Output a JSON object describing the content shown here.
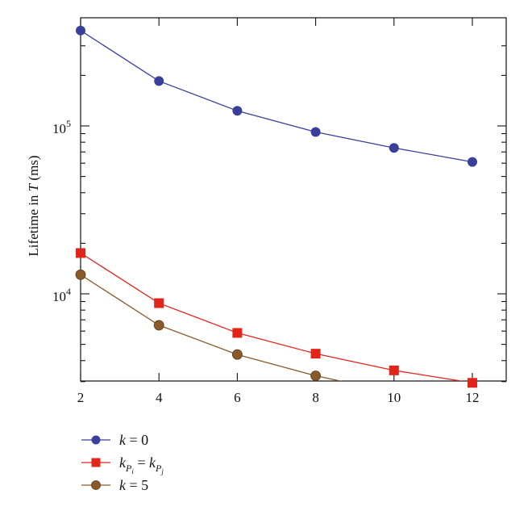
{
  "chart_data": {
    "type": "line",
    "x_scale": "linear",
    "y_scale": "log",
    "xlim": [
      2,
      12.8
    ],
    "ylim": [
      2900,
      380000
    ],
    "x_ticks": [
      2,
      4,
      6,
      8,
      10,
      12
    ],
    "x_tick_labels": [
      "2",
      "4",
      "6",
      "8",
      "10",
      "12"
    ],
    "y_labeled_ticks": [
      {
        "value": 100000,
        "base": "10",
        "exp": "5"
      },
      {
        "value": 10000,
        "base": "10",
        "exp": "4"
      }
    ],
    "y_label": {
      "prefix": "Lifetime in ",
      "symbol": "T",
      "suffix": " (ms)"
    },
    "grid": false,
    "legend_placement": "below-left",
    "series": [
      {
        "name": "k = 0",
        "marker": "circle",
        "color": "#3a3f9c",
        "x": [
          2,
          4,
          6,
          8,
          10,
          12
        ],
        "y": [
          370000,
          185000,
          123000,
          92000,
          74000,
          61000
        ]
      },
      {
        "name": "k_{P_i} = k_{P_j}",
        "marker": "square",
        "color": "#e1251b",
        "x": [
          2,
          4,
          6,
          8,
          10,
          12
        ],
        "y": [
          17500,
          8800,
          5850,
          4400,
          3500,
          2950
        ]
      },
      {
        "name": "k = 5",
        "marker": "circle",
        "color": "#8a5a2b",
        "x": [
          2,
          4,
          6,
          8,
          9
        ],
        "y": [
          13000,
          6500,
          4350,
          3250,
          2900
        ]
      }
    ],
    "legend": [
      {
        "color": "#3a3f9c",
        "marker": "circle"
      },
      {
        "color": "#e1251b",
        "marker": "square"
      },
      {
        "color": "#8a5a2b",
        "marker": "circle"
      }
    ]
  }
}
